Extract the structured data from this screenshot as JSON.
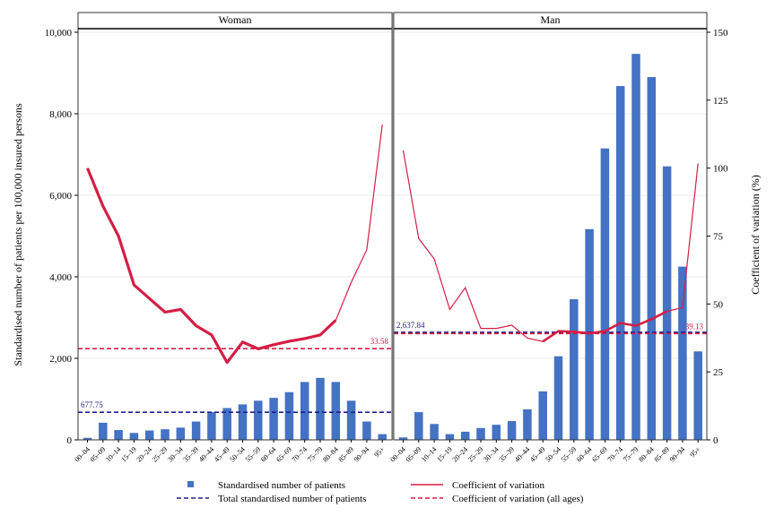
{
  "chart_data": {
    "type": "bar",
    "panels": [
      "Woman",
      "Man"
    ],
    "categories": [
      "00–04",
      "05–09",
      "10–14",
      "15–19",
      "20–24",
      "25–29",
      "30–34",
      "35–39",
      "40–44",
      "45–49",
      "50–54",
      "55–59",
      "60–64",
      "65–69",
      "70–74",
      "75–79",
      "80–84",
      "85–89",
      "90–94",
      "95+"
    ],
    "ylabel_left": "Standardised number of patients per 100,000 insured persons",
    "ylabel_right": "Coefficient of variation (%)",
    "ylim_left": [
      0,
      10000
    ],
    "ylim_right": [
      0,
      150
    ],
    "yticks_left": [
      "0",
      "2,000",
      "4,000",
      "6,000",
      "8,000",
      "10,000"
    ],
    "yticks_right": [
      "0",
      "25",
      "50",
      "75",
      "100",
      "125",
      "150"
    ],
    "series": [
      {
        "name": "Standardised number of patients",
        "kind": "bar",
        "axis": "left",
        "color": "#4472c4",
        "values": {
          "Woman": [
            50,
            420,
            240,
            170,
            230,
            260,
            300,
            450,
            680,
            780,
            870,
            960,
            1030,
            1170,
            1420,
            1520,
            1420,
            960,
            450,
            140
          ],
          "Man": [
            60,
            680,
            390,
            140,
            200,
            290,
            370,
            460,
            750,
            1190,
            2050,
            3450,
            5170,
            7150,
            8680,
            9470,
            8900,
            6710,
            4250,
            2170
          ]
        }
      },
      {
        "name": "Coefficient of variation",
        "kind": "line",
        "axis": "right",
        "color": "#d51e44",
        "values": {
          "Woman": [
            100,
            86,
            75,
            57,
            52,
            47,
            48,
            42,
            38.6,
            28.5,
            36,
            33.5,
            35,
            36.3,
            37.3,
            38.6,
            44,
            58,
            70,
            116
          ],
          "Man": [
            106.5,
            74.1,
            66.6,
            48,
            56,
            41,
            41,
            42.2,
            37.5,
            36.2,
            40,
            39.8,
            39.2,
            40,
            43,
            42,
            44.4,
            47.3,
            48.7,
            101.7
          ]
        }
      },
      {
        "name": "Total standardised number of patients",
        "kind": "hline",
        "axis": "left",
        "color": "#1f1f8f",
        "values": {
          "Woman": 677.75,
          "Man": 2637.84
        },
        "labels": {
          "Woman": "677.75",
          "Man": "2,637.84"
        }
      },
      {
        "name": "Coefficient of variation (all ages)",
        "kind": "hline",
        "axis": "right",
        "color": "#d51e44",
        "values": {
          "Woman": 33.58,
          "Man": 39.13
        },
        "labels": {
          "Woman": "33.58",
          "Man": "39.13"
        }
      }
    ],
    "legend": [
      {
        "label": "Standardised number of patients",
        "symbol": "square",
        "color": "#4472c4"
      },
      {
        "label": "Coefficient of variation",
        "symbol": "solid",
        "color": "#d51e44"
      },
      {
        "label": "Total standardised number of patients",
        "symbol": "dashed",
        "color": "#1f1f8f"
      },
      {
        "label": "Coefficient of variation (all ages)",
        "symbol": "dashed",
        "color": "#d51e44"
      }
    ],
    "legend_position": "bottom",
    "grid": "horizontal"
  }
}
